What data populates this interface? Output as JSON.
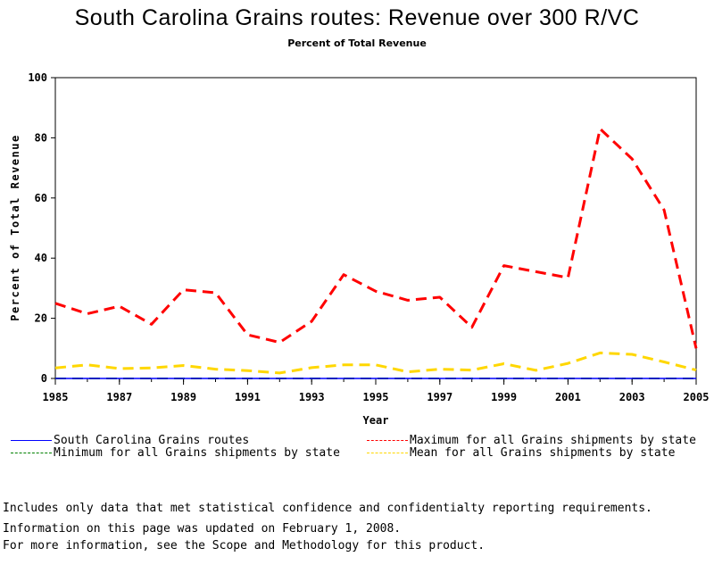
{
  "page": {
    "title": "South Carolina Grains routes: Revenue over 300 R/VC",
    "subtitle": "Percent of Total Revenue",
    "notes": [
      "Includes only data that met statistical confidence and confidentialty reporting requirements.",
      "For more information, see the Scope and Methodology for this product."
    ],
    "updated": "Information on this page was updated on February 1, 2008."
  },
  "chart_data": {
    "type": "line",
    "title": "South Carolina Grains routes: Revenue over 300 R/VC",
    "subtitle": "Percent of Total Revenue",
    "xlabel": "Year",
    "ylabel": "Percent of Total Revenue",
    "xlim": [
      1985,
      2005
    ],
    "ylim": [
      0,
      100
    ],
    "x_ticks": [
      "1985",
      "1987",
      "1989",
      "1991",
      "1993",
      "1995",
      "1997",
      "1999",
      "2001",
      "2003",
      "2005"
    ],
    "y_ticks": [
      "0",
      "20",
      "40",
      "60",
      "80",
      "100"
    ],
    "grid": false,
    "legend_position": "bottom",
    "x": [
      1985,
      1986,
      1987,
      1988,
      1989,
      1990,
      1991,
      1992,
      1993,
      1994,
      1995,
      1996,
      1997,
      1998,
      1999,
      2000,
      2001,
      2002,
      2003,
      2004,
      2005
    ],
    "series": [
      {
        "name": "South Carolina Grains routes",
        "color": "#0000ff",
        "dash": "solid",
        "values": [
          0,
          0,
          0,
          0,
          0,
          0,
          0,
          0,
          0,
          0,
          0,
          0,
          0,
          0,
          0,
          0,
          0,
          0,
          0,
          0,
          0
        ]
      },
      {
        "name": "Minimum for all Grains shipments by state",
        "color": "#008000",
        "dash": "dashed",
        "values": [
          0,
          0,
          0,
          0,
          0,
          0,
          0,
          0,
          0,
          0,
          0,
          0,
          0,
          0,
          0,
          0,
          0,
          0,
          0,
          0,
          0
        ]
      },
      {
        "name": "Maximum for all Grains shipments by state",
        "color": "#ff0000",
        "dash": "dashed",
        "values": [
          25,
          21.5,
          24,
          18,
          29.5,
          28.5,
          14.5,
          12,
          19,
          34.5,
          29,
          26,
          27,
          17,
          37.5,
          35.5,
          33.5,
          83,
          73,
          56,
          10
        ]
      },
      {
        "name": "Mean for all Grains shipments by state",
        "color": "#ffd700",
        "dash": "dashed",
        "values": [
          3.5,
          4.5,
          3.3,
          3.5,
          4.3,
          3.1,
          2.6,
          1.8,
          3.6,
          4.5,
          4.5,
          2.2,
          3.1,
          2.8,
          4.9,
          2.7,
          5,
          8.5,
          8,
          5.5,
          2.8
        ]
      }
    ]
  }
}
